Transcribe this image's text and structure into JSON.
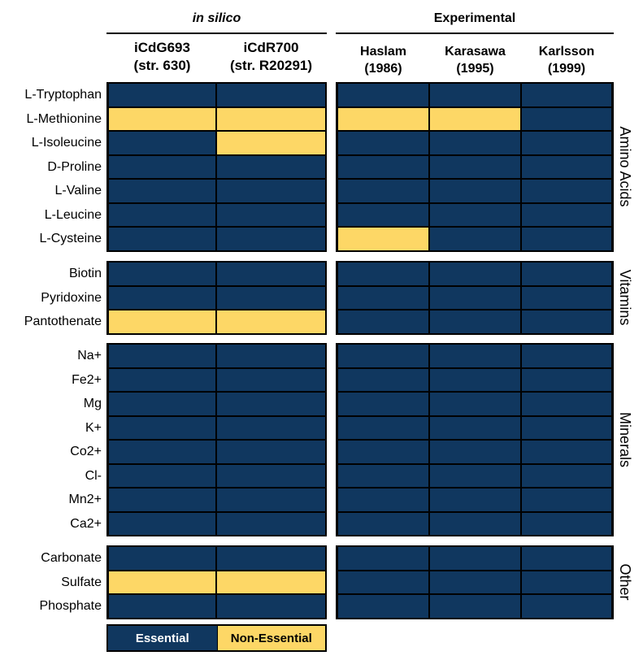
{
  "chart_data": {
    "type": "heatmap",
    "groups": [
      {
        "title": "in silico",
        "columns": [
          {
            "line1": "iCdG693",
            "line2": "(str. 630)"
          },
          {
            "line1": "iCdR700",
            "line2": "(str. R20291)"
          }
        ]
      },
      {
        "title": "Experimental",
        "columns": [
          {
            "line1": "Haslam",
            "line2": "(1986)"
          },
          {
            "line1": "Karasawa",
            "line2": "(1995)"
          },
          {
            "line1": "Karlsson",
            "line2": "(1999)"
          }
        ]
      }
    ],
    "categories": [
      {
        "name": "Amino Acids",
        "rows": [
          {
            "label": "L-Tryptophan",
            "values": [
              "E",
              "E",
              "E",
              "E",
              "E"
            ]
          },
          {
            "label": "L-Methionine",
            "values": [
              "N",
              "N",
              "N",
              "N",
              "E"
            ]
          },
          {
            "label": "L-Isoleucine",
            "values": [
              "E",
              "N",
              "E",
              "E",
              "E"
            ]
          },
          {
            "label": "D-Proline",
            "values": [
              "E",
              "E",
              "E",
              "E",
              "E"
            ]
          },
          {
            "label": "L-Valine",
            "values": [
              "E",
              "E",
              "E",
              "E",
              "E"
            ]
          },
          {
            "label": "L-Leucine",
            "values": [
              "E",
              "E",
              "E",
              "E",
              "E"
            ]
          },
          {
            "label": "L-Cysteine",
            "values": [
              "E",
              "E",
              "N",
              "E",
              "E"
            ]
          }
        ]
      },
      {
        "name": "Vitamins",
        "rows": [
          {
            "label": "Biotin",
            "values": [
              "E",
              "E",
              "E",
              "E",
              "E"
            ]
          },
          {
            "label": "Pyridoxine",
            "values": [
              "E",
              "E",
              "E",
              "E",
              "E"
            ]
          },
          {
            "label": "Pantothenate",
            "values": [
              "N",
              "N",
              "E",
              "E",
              "E"
            ]
          }
        ]
      },
      {
        "name": "Minerals",
        "rows": [
          {
            "label": "Na+",
            "values": [
              "E",
              "E",
              "E",
              "E",
              "E"
            ]
          },
          {
            "label": "Fe2+",
            "values": [
              "E",
              "E",
              "E",
              "E",
              "E"
            ]
          },
          {
            "label": "Mg",
            "values": [
              "E",
              "E",
              "E",
              "E",
              "E"
            ]
          },
          {
            "label": "K+",
            "values": [
              "E",
              "E",
              "E",
              "E",
              "E"
            ]
          },
          {
            "label": "Co2+",
            "values": [
              "E",
              "E",
              "E",
              "E",
              "E"
            ]
          },
          {
            "label": "Cl-",
            "values": [
              "E",
              "E",
              "E",
              "E",
              "E"
            ]
          },
          {
            "label": "Mn2+",
            "values": [
              "E",
              "E",
              "E",
              "E",
              "E"
            ]
          },
          {
            "label": "Ca2+",
            "values": [
              "E",
              "E",
              "E",
              "E",
              "E"
            ]
          }
        ]
      },
      {
        "name": "Other",
        "rows": [
          {
            "label": "Carbonate",
            "values": [
              "E",
              "E",
              "E",
              "E",
              "E"
            ]
          },
          {
            "label": "Sulfate",
            "values": [
              "N",
              "N",
              "E",
              "E",
              "E"
            ]
          },
          {
            "label": "Phosphate",
            "values": [
              "E",
              "E",
              "E",
              "E",
              "E"
            ]
          }
        ]
      }
    ],
    "legend": [
      {
        "key": "E",
        "label": "Essential",
        "color": "#10375f",
        "text_color": "#ffffff"
      },
      {
        "key": "N",
        "label": "Non-Essential",
        "color": "#fdd766",
        "text_color": "#000000"
      }
    ]
  }
}
